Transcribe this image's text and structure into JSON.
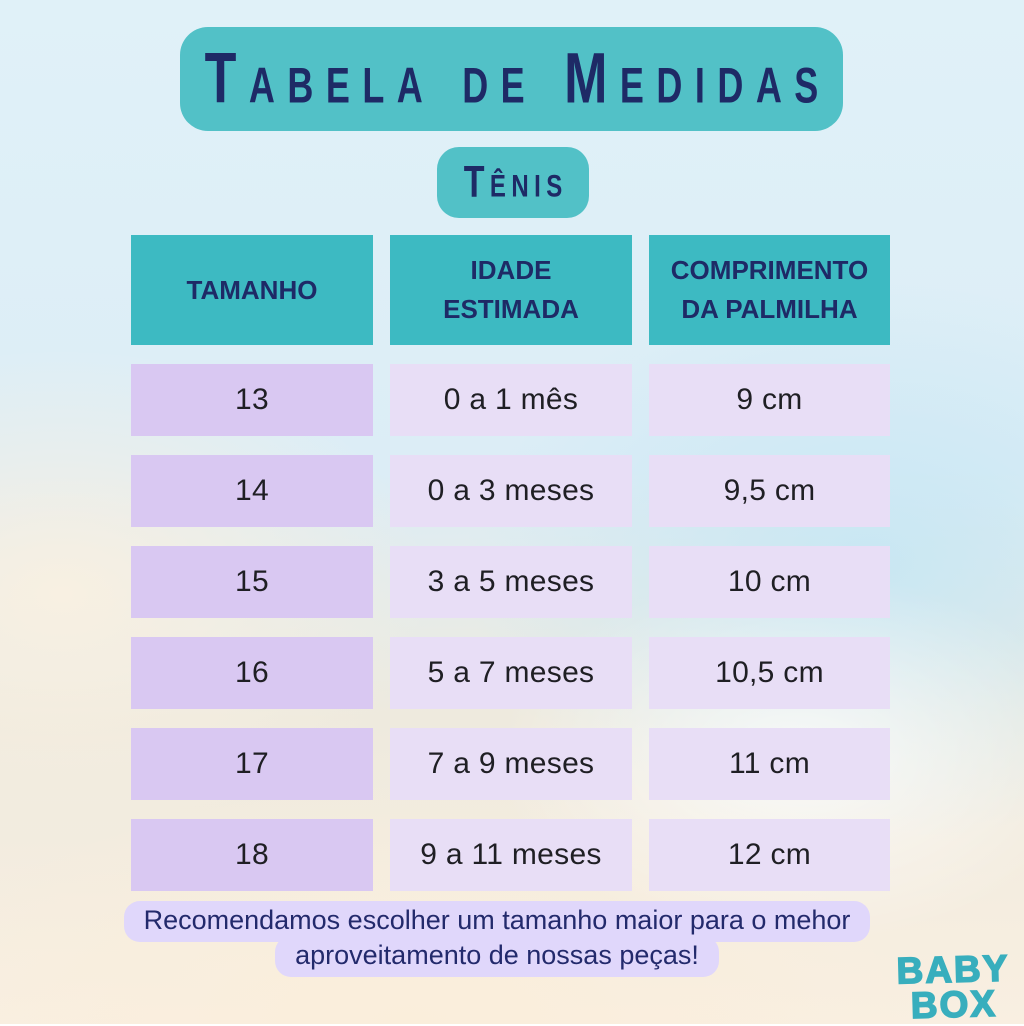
{
  "header": {
    "title": "Tabela de Medidas",
    "subtitle": "Tênis"
  },
  "table": {
    "columns": [
      "TAMANHO",
      "IDADE ESTIMADA",
      "COMPRIMENTO DA PALMILHA"
    ],
    "rows": [
      {
        "size": "13",
        "age": "0 a 1 mês",
        "insole": "9 cm"
      },
      {
        "size": "14",
        "age": "0 a 3 meses",
        "insole": "9,5 cm"
      },
      {
        "size": "15",
        "age": "3 a 5 meses",
        "insole": "10 cm"
      },
      {
        "size": "16",
        "age": "5 a 7 meses",
        "insole": "10,5 cm"
      },
      {
        "size": "17",
        "age": "7 a 9 meses",
        "insole": "11 cm"
      },
      {
        "size": "18",
        "age": "9 a 11 meses",
        "insole": "12 cm"
      }
    ]
  },
  "footer": {
    "line1": "Recomendamos escolher um tamanho maior para o mehor",
    "line2": "aproveitamento de nossas peças!"
  },
  "logo": {
    "line1": "BABY",
    "line2": "BOX"
  },
  "colors": {
    "banner_teal": "#52c1c7",
    "header_teal": "#3dbac2",
    "navy": "#1e2a66",
    "row_size_lavender": "#d9c8f2",
    "row_light_lavender": "#e8def6",
    "footer_pill_lavender": "#e0d7fb",
    "logo_teal": "#38aebd",
    "background_top": "#e0f1f8",
    "background_bottom": "#f9efe1"
  }
}
